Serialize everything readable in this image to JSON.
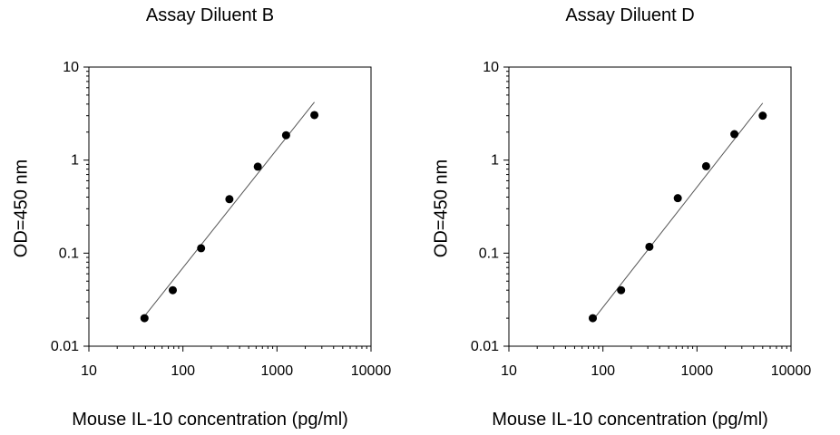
{
  "chart_data": [
    {
      "type": "scatter",
      "title": "Assay Diluent B",
      "xlabel": "Mouse IL-10 concentration (pg/ml)",
      "ylabel": "OD=450 nm",
      "xscale": "log",
      "yscale": "log",
      "xlim": [
        10,
        10000
      ],
      "ylim": [
        0.01,
        10
      ],
      "xticks": [
        "10",
        "100",
        "1000",
        "10000"
      ],
      "yticks": [
        "0.01",
        "0.1",
        "1",
        "10"
      ],
      "grid": false,
      "legend": "none",
      "points": [
        {
          "x": 39,
          "y": 0.02
        },
        {
          "x": 78,
          "y": 0.04
        },
        {
          "x": 156,
          "y": 0.113
        },
        {
          "x": 312,
          "y": 0.38
        },
        {
          "x": 625,
          "y": 0.85
        },
        {
          "x": 1250,
          "y": 1.85
        },
        {
          "x": 2500,
          "y": 3.05
        }
      ],
      "fit_line": [
        {
          "x": 39,
          "y": 0.021
        },
        {
          "x": 2500,
          "y": 4.2
        }
      ],
      "point_color": "#000000",
      "line_color": "#555555"
    },
    {
      "type": "scatter",
      "title": "Assay Diluent D",
      "xlabel": "Mouse IL-10 concentration (pg/ml)",
      "ylabel": "OD=450 nm",
      "xscale": "log",
      "yscale": "log",
      "xlim": [
        10,
        10000
      ],
      "ylim": [
        0.01,
        10
      ],
      "xticks": [
        "10",
        "100",
        "1000",
        "10000"
      ],
      "yticks": [
        "0.01",
        "0.1",
        "1",
        "10"
      ],
      "grid": false,
      "legend": "none",
      "points": [
        {
          "x": 78,
          "y": 0.02
        },
        {
          "x": 156,
          "y": 0.04
        },
        {
          "x": 312,
          "y": 0.117
        },
        {
          "x": 625,
          "y": 0.39
        },
        {
          "x": 1250,
          "y": 0.86
        },
        {
          "x": 2500,
          "y": 1.9
        },
        {
          "x": 5000,
          "y": 3.0
        }
      ],
      "fit_line": [
        {
          "x": 78,
          "y": 0.019
        },
        {
          "x": 5000,
          "y": 4.1
        }
      ],
      "point_color": "#000000",
      "line_color": "#555555"
    }
  ]
}
